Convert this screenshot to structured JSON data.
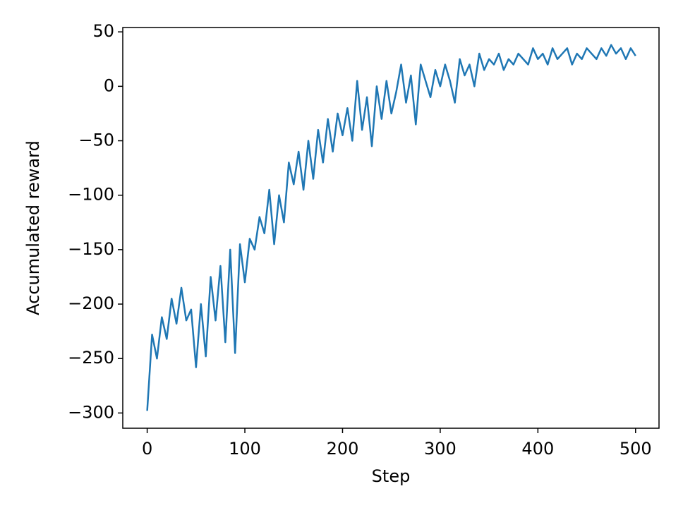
{
  "chart_data": {
    "type": "line",
    "xlabel": "Step",
    "ylabel": "Accumulated reward",
    "xlim": [
      -25,
      524
    ],
    "ylim": [
      -314,
      54
    ],
    "xticks": [
      0,
      100,
      200,
      300,
      400,
      500
    ],
    "yticks": [
      {
        "value": -300,
        "label": "−300"
      },
      {
        "value": -250,
        "label": "−250"
      },
      {
        "value": -200,
        "label": "−200"
      },
      {
        "value": -150,
        "label": "−150"
      },
      {
        "value": -100,
        "label": "−100"
      },
      {
        "value": -50,
        "label": "−50"
      },
      0,
      50
    ],
    "grid": false,
    "x": [
      0,
      5,
      10,
      15,
      20,
      25,
      30,
      35,
      40,
      45,
      50,
      55,
      60,
      65,
      70,
      75,
      80,
      85,
      90,
      95,
      100,
      105,
      110,
      115,
      120,
      125,
      130,
      135,
      140,
      145,
      150,
      155,
      160,
      165,
      170,
      175,
      180,
      185,
      190,
      195,
      200,
      205,
      210,
      215,
      220,
      225,
      230,
      235,
      240,
      245,
      250,
      255,
      260,
      265,
      270,
      275,
      280,
      285,
      290,
      295,
      300,
      305,
      310,
      315,
      320,
      325,
      330,
      335,
      340,
      345,
      350,
      355,
      360,
      365,
      370,
      375,
      380,
      385,
      390,
      395,
      400,
      405,
      410,
      415,
      420,
      425,
      430,
      435,
      440,
      445,
      450,
      455,
      460,
      465,
      470,
      475,
      480,
      485,
      490,
      495,
      500
    ],
    "series": [
      {
        "color": "#1f77b4",
        "values": [
          -298,
          -228,
          -250,
          -212,
          -232,
          -195,
          -218,
          -185,
          -215,
          -205,
          -258,
          -200,
          -248,
          -175,
          -215,
          -165,
          -235,
          -150,
          -245,
          -145,
          -180,
          -140,
          -150,
          -120,
          -135,
          -95,
          -145,
          -100,
          -125,
          -70,
          -90,
          -60,
          -95,
          -50,
          -85,
          -40,
          -70,
          -30,
          -60,
          -25,
          -45,
          -20,
          -50,
          5,
          -40,
          -10,
          -55,
          0,
          -30,
          5,
          -25,
          -5,
          20,
          -15,
          10,
          -35,
          20,
          5,
          -10,
          15,
          0,
          20,
          5,
          -15,
          25,
          10,
          20,
          0,
          30,
          15,
          25,
          20,
          30,
          15,
          25,
          20,
          30,
          25,
          20,
          35,
          25,
          30,
          20,
          35,
          25,
          30,
          35,
          20,
          30,
          25,
          35,
          30,
          25,
          35,
          28,
          38,
          30,
          35,
          25,
          35,
          28
        ]
      }
    ]
  }
}
